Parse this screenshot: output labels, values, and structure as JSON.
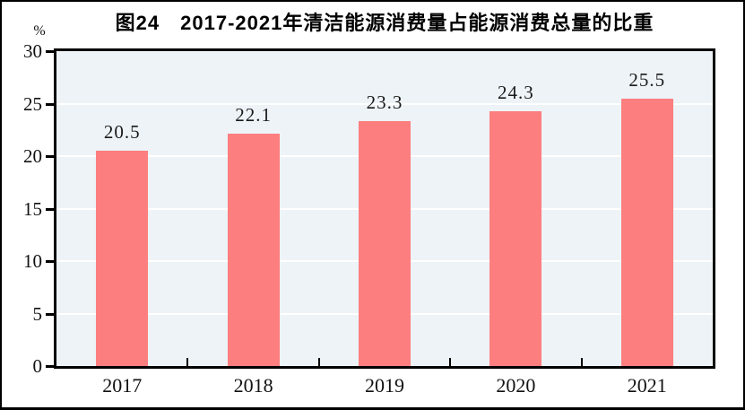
{
  "title": "图24　2017-2021年清洁能源消费量占能源消费总量的比重",
  "unit_label": "%",
  "colors": {
    "bar": "#FC7E7E",
    "plot_background": "#EDF3F7",
    "gridline": "#FFFFFF",
    "axis": "#000000",
    "outer_border": "#000000",
    "text": "#111111"
  },
  "chart_data": {
    "type": "bar",
    "title": "图24　2017-2021年清洁能源消费量占能源消费总量的比重",
    "categories": [
      "2017",
      "2018",
      "2019",
      "2020",
      "2021"
    ],
    "values": [
      20.5,
      22.1,
      23.3,
      24.3,
      25.5
    ],
    "data_labels": [
      "20.5",
      "22.1",
      "23.3",
      "24.3",
      "25.5"
    ],
    "xlabel": "",
    "ylabel": "%",
    "ylim": [
      0,
      30
    ],
    "yticks": [
      0,
      5,
      10,
      15,
      20,
      25,
      30
    ],
    "gridline_values": [
      5,
      10,
      15,
      20,
      25
    ],
    "grid": true,
    "legend": "none"
  }
}
